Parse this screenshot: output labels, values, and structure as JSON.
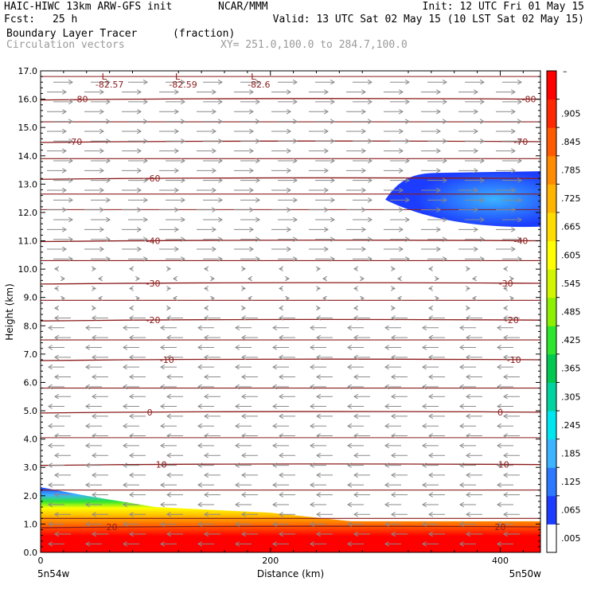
{
  "header": {
    "model_line": "HAIC-HIWC 13km ARW-GFS init",
    "org": "NCAR/MMM",
    "init": "Init: 12 UTC Fri 01 May 15",
    "fcst_label": "Fcst:",
    "fcst_value": "25 h",
    "valid": "Valid: 13 UTC Sat 02 May 15 (10 LST Sat 02 May 15)",
    "field_name": "Boundary Layer Tracer",
    "field_units": "(fraction)",
    "vector_label": "Circulation vectors",
    "xsec_label": "XY= 251.0,100.0 to 284.7,100.0"
  },
  "chart_data": {
    "type": "heatmap",
    "xlabel": "Distance (km)",
    "ylabel": "Height (km)",
    "xlim": [
      0,
      435
    ],
    "ylim": [
      0,
      17
    ],
    "x_ticks": [
      0,
      200,
      400
    ],
    "y_ticks": [
      "0.0",
      "1.0",
      "2.0",
      "3.0",
      "4.0",
      "5.0",
      "6.0",
      "7.0",
      "8.0",
      "9.0",
      "10.0",
      "11.0",
      "12.0",
      "13.0",
      "14.0",
      "15.0",
      "16.0",
      "17.0"
    ],
    "x_endpoints": {
      "left": "5n54w",
      "right": "5n50w"
    },
    "colorbar": {
      "labels": [
        ".005",
        ".065",
        ".125",
        ".185",
        ".245",
        ".305",
        ".365",
        ".425",
        ".485",
        ".545",
        ".605",
        ".665",
        ".725",
        ".785",
        ".845",
        ".905"
      ],
      "top_label": "–",
      "colors": [
        "#ffffff",
        "#1c3dff",
        "#2c78ff",
        "#3cb4ff",
        "#00e6f0",
        "#00d2a0",
        "#00c850",
        "#2ee62e",
        "#8cf000",
        "#d2f500",
        "#ffff00",
        "#ffdc00",
        "#ffb400",
        "#ff8c00",
        "#ff5a00",
        "#ff2800",
        "#ff0000"
      ]
    },
    "tracer_surface_layer": [
      {
        "x": 0,
        "top_km": 2.3
      },
      {
        "x": 40,
        "top_km": 2.0
      },
      {
        "x": 100,
        "top_km": 1.6
      },
      {
        "x": 200,
        "top_km": 1.4
      },
      {
        "x": 270,
        "top_km": 1.1
      },
      {
        "x": 435,
        "top_km": 1.1
      }
    ],
    "tracer_upper_plume": {
      "x_range": [
        300,
        435
      ],
      "z_range_km": [
        11.5,
        13.4
      ],
      "peak_value": 0.3
    },
    "isotherm_labels": [
      {
        "text": "-80",
        "x": 35,
        "z": 16.0
      },
      {
        "text": "-80",
        "x": 425,
        "z": 16.0
      },
      {
        "text": "-70",
        "x": 30,
        "z": 14.5
      },
      {
        "text": "-70",
        "x": 418,
        "z": 14.5
      },
      {
        "text": "-60",
        "x": 98,
        "z": 13.2
      },
      {
        "text": "-40",
        "x": 98,
        "z": 11.0
      },
      {
        "text": "-40",
        "x": 418,
        "z": 11.0
      },
      {
        "text": "-30",
        "x": 98,
        "z": 9.5
      },
      {
        "text": "-30",
        "x": 405,
        "z": 9.5
      },
      {
        "text": "-20",
        "x": 98,
        "z": 8.2
      },
      {
        "text": "-20",
        "x": 410,
        "z": 8.2
      },
      {
        "text": "-10",
        "x": 110,
        "z": 6.8
      },
      {
        "text": "-10",
        "x": 412,
        "z": 6.8
      },
      {
        "text": "0",
        "x": 95,
        "z": 4.95
      },
      {
        "text": "0",
        "x": 400,
        "z": 4.95
      },
      {
        "text": "10",
        "x": 105,
        "z": 3.1
      },
      {
        "text": "10",
        "x": 403,
        "z": 3.1
      },
      {
        "text": "20",
        "x": 62,
        "z": 0.9
      },
      {
        "text": "20",
        "x": 400,
        "z": 0.9
      }
    ],
    "minima_labels": [
      {
        "marker": "L",
        "value": "-82.57",
        "x": 60
      },
      {
        "marker": "L",
        "value": "-82.59",
        "x": 124
      },
      {
        "marker": "L",
        "value": "-82.6",
        "x": 190
      }
    ],
    "wind_regimes": [
      {
        "z_range_km": [
          10.3,
          16.8
        ],
        "direction": "east",
        "strength": "strong"
      },
      {
        "z_range_km": [
          8.6,
          10.3
        ],
        "direction": "light",
        "strength": "weak"
      },
      {
        "z_range_km": [
          0.3,
          8.6
        ],
        "direction": "west",
        "strength": "moderate"
      }
    ]
  }
}
